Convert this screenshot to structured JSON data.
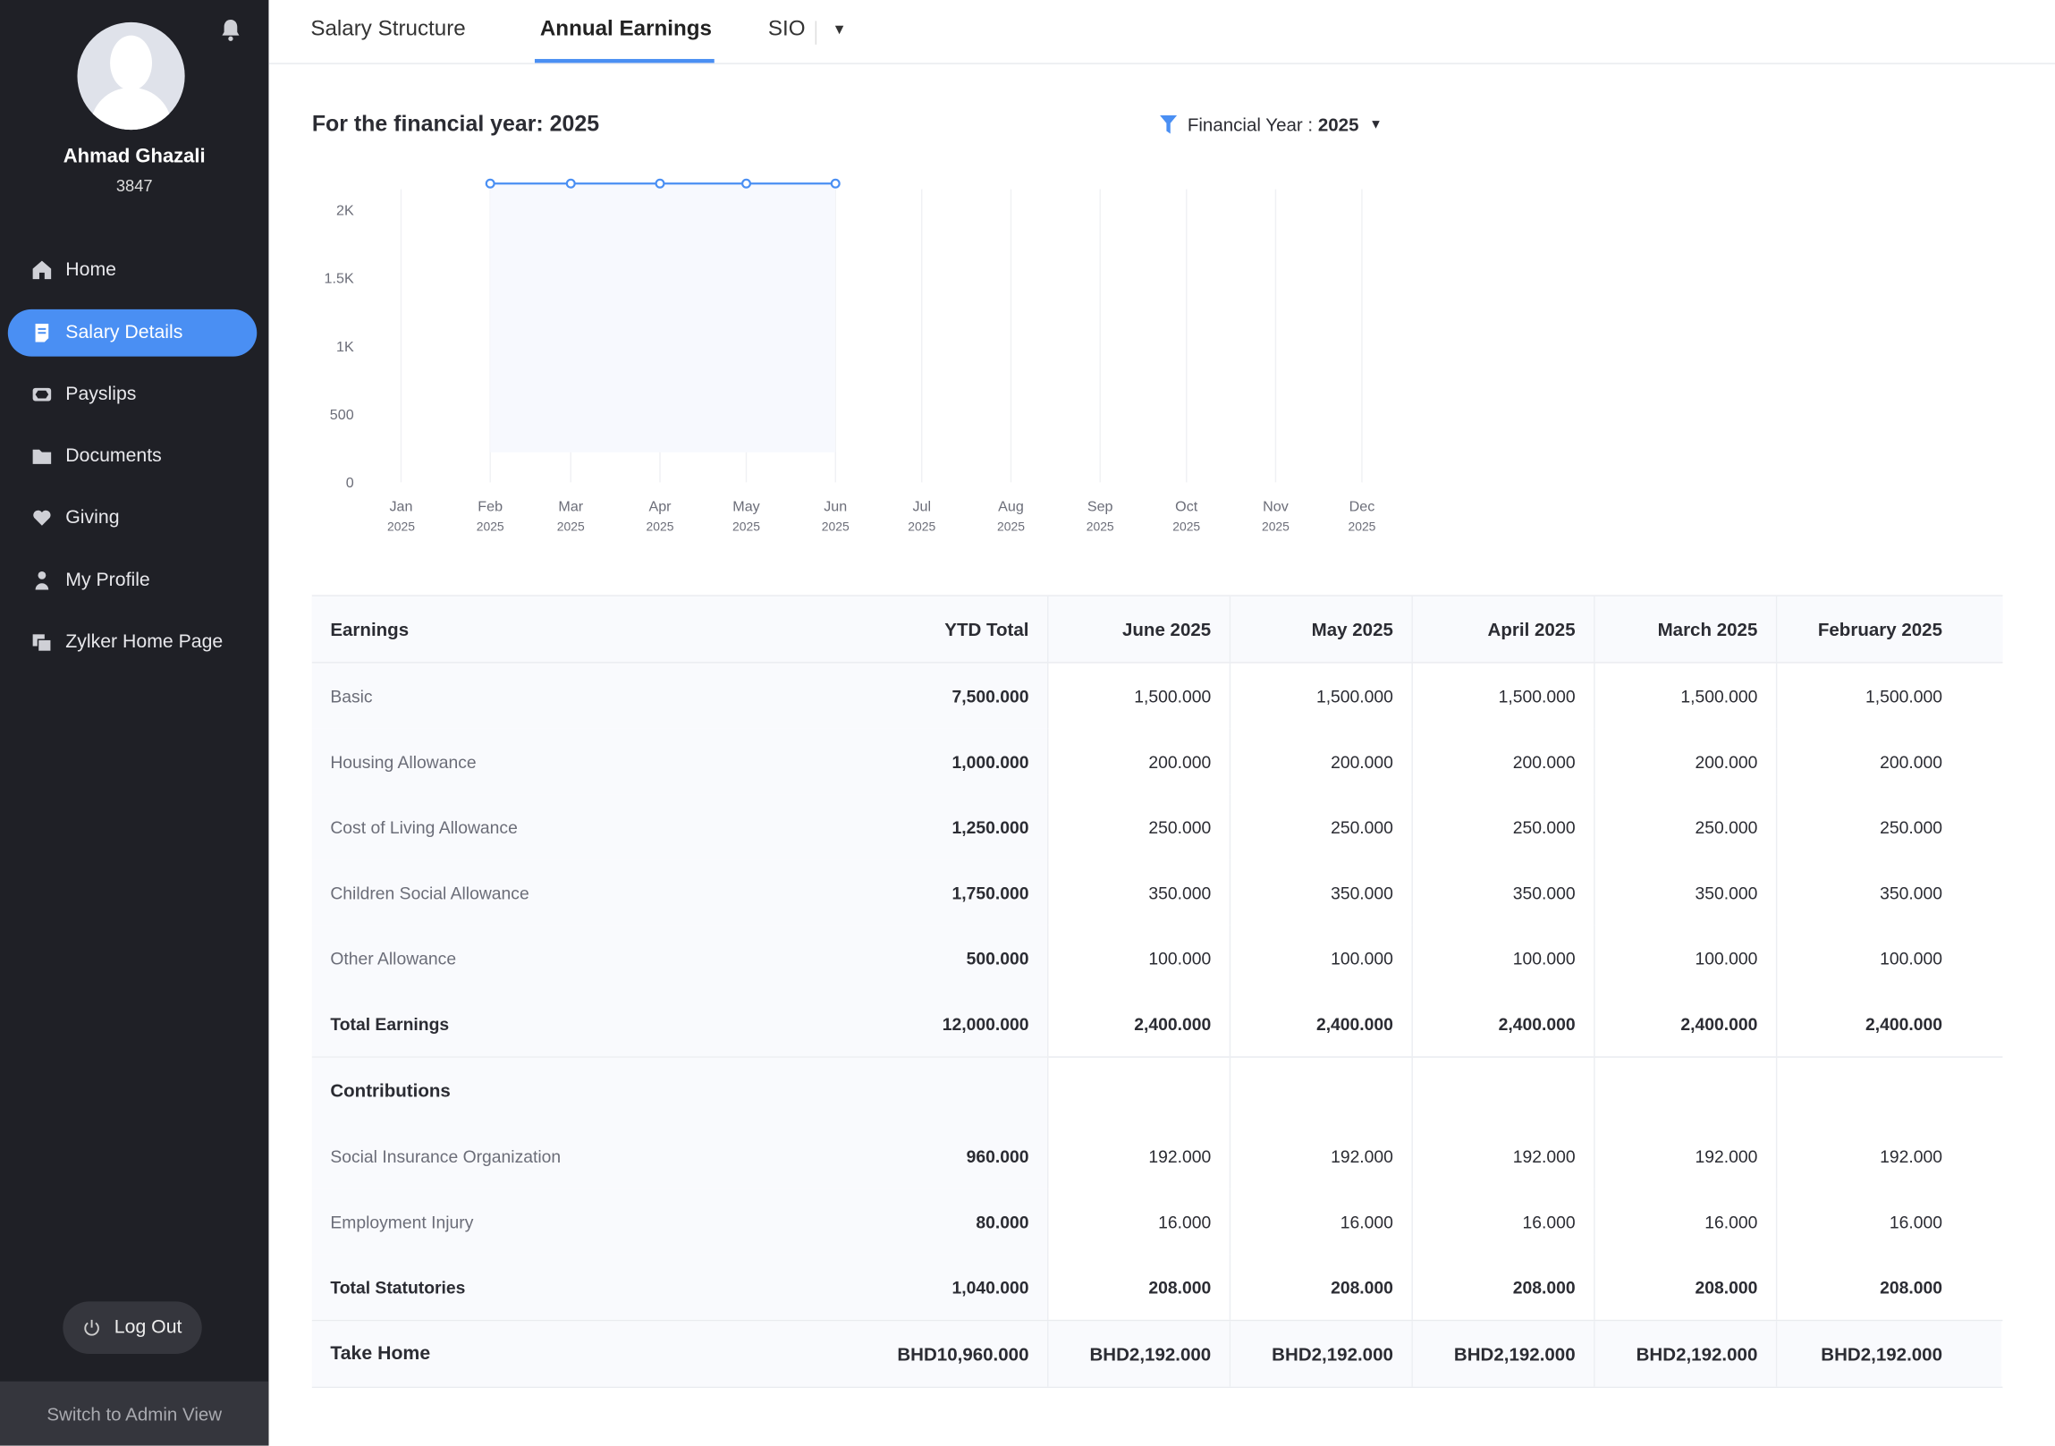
{
  "user": {
    "name": "Ahmad Ghazali",
    "id": "3847"
  },
  "sidebar": {
    "items": [
      {
        "label": "Home",
        "icon": "home-icon"
      },
      {
        "label": "Salary Details",
        "icon": "document-icon",
        "active": true
      },
      {
        "label": "Payslips",
        "icon": "payslip-icon"
      },
      {
        "label": "Documents",
        "icon": "folder-icon"
      },
      {
        "label": "Giving",
        "icon": "heart-icon"
      },
      {
        "label": "My Profile",
        "icon": "person-icon"
      },
      {
        "label": "Zylker Home Page",
        "icon": "pages-icon"
      }
    ],
    "logout": "Log Out",
    "switch_admin": "Switch to Admin View"
  },
  "tabs": [
    {
      "label": "Salary Structure"
    },
    {
      "label": "Annual Earnings",
      "active": true
    },
    {
      "label": "SIO"
    }
  ],
  "heading": "For the financial year: 2025",
  "filter": {
    "label": "Financial Year :",
    "value": "2025"
  },
  "colors": {
    "accent": "#4a8ff3",
    "sidebar": "#1f2026"
  },
  "chart_data": {
    "type": "area",
    "x": [
      "Jan 2025",
      "Feb 2025",
      "Mar 2025",
      "Apr 2025",
      "May 2025",
      "Jun 2025",
      "Jul 2025",
      "Aug 2025",
      "Sep 2025",
      "Oct 2025",
      "Nov 2025",
      "Dec 2025"
    ],
    "x_ticks": [
      [
        "Jan",
        "2025"
      ],
      [
        "Feb",
        "2025"
      ],
      [
        "Mar",
        "2025"
      ],
      [
        "Apr",
        "2025"
      ],
      [
        "May",
        "2025"
      ],
      [
        "Jun",
        "2025"
      ],
      [
        "Jul",
        "2025"
      ],
      [
        "Aug",
        "2025"
      ],
      [
        "Sep",
        "2025"
      ],
      [
        "Oct",
        "2025"
      ],
      [
        "Nov",
        "2025"
      ],
      [
        "Dec",
        "2025"
      ]
    ],
    "series": [
      {
        "points": [
          [
            "Feb 2025",
            2192
          ],
          [
            "Mar 2025",
            2192
          ],
          [
            "Apr 2025",
            2192
          ],
          [
            "May 2025",
            2192
          ],
          [
            "Jun 2025",
            2192
          ]
        ]
      }
    ],
    "y_ticks": [
      "0",
      "500",
      "1K",
      "1.5K",
      "2K"
    ],
    "ylim": [
      0,
      2200
    ],
    "grid": "vertical",
    "color": "#4a8ff3"
  },
  "table": {
    "headers": [
      "Earnings",
      "YTD Total",
      "June 2025",
      "May 2025",
      "April 2025",
      "March 2025",
      "February 2025"
    ],
    "earnings": [
      {
        "label": "Basic",
        "ytd": "7,500.000",
        "months": [
          "1,500.000",
          "1,500.000",
          "1,500.000",
          "1,500.000",
          "1,500.000"
        ]
      },
      {
        "label": "Housing Allowance",
        "ytd": "1,000.000",
        "months": [
          "200.000",
          "200.000",
          "200.000",
          "200.000",
          "200.000"
        ]
      },
      {
        "label": "Cost of Living Allowance",
        "ytd": "1,250.000",
        "months": [
          "250.000",
          "250.000",
          "250.000",
          "250.000",
          "250.000"
        ]
      },
      {
        "label": "Children Social Allowance",
        "ytd": "1,750.000",
        "months": [
          "350.000",
          "350.000",
          "350.000",
          "350.000",
          "350.000"
        ]
      },
      {
        "label": "Other Allowance",
        "ytd": "500.000",
        "months": [
          "100.000",
          "100.000",
          "100.000",
          "100.000",
          "100.000"
        ]
      }
    ],
    "total_earnings": {
      "label": "Total Earnings",
      "ytd": "12,000.000",
      "months": [
        "2,400.000",
        "2,400.000",
        "2,400.000",
        "2,400.000",
        "2,400.000"
      ]
    },
    "contributions_label": "Contributions",
    "contributions": [
      {
        "label": "Social Insurance Organization",
        "ytd": "960.000",
        "months": [
          "192.000",
          "192.000",
          "192.000",
          "192.000",
          "192.000"
        ]
      },
      {
        "label": "Employment Injury",
        "ytd": "80.000",
        "months": [
          "16.000",
          "16.000",
          "16.000",
          "16.000",
          "16.000"
        ]
      }
    ],
    "total_statutories": {
      "label": "Total Statutories",
      "ytd": "1,040.000",
      "months": [
        "208.000",
        "208.000",
        "208.000",
        "208.000",
        "208.000"
      ]
    },
    "take_home": {
      "label": "Take Home",
      "ytd": "BHD10,960.000",
      "months": [
        "BHD2,192.000",
        "BHD2,192.000",
        "BHD2,192.000",
        "BHD2,192.000",
        "BHD2,192.000"
      ]
    }
  }
}
